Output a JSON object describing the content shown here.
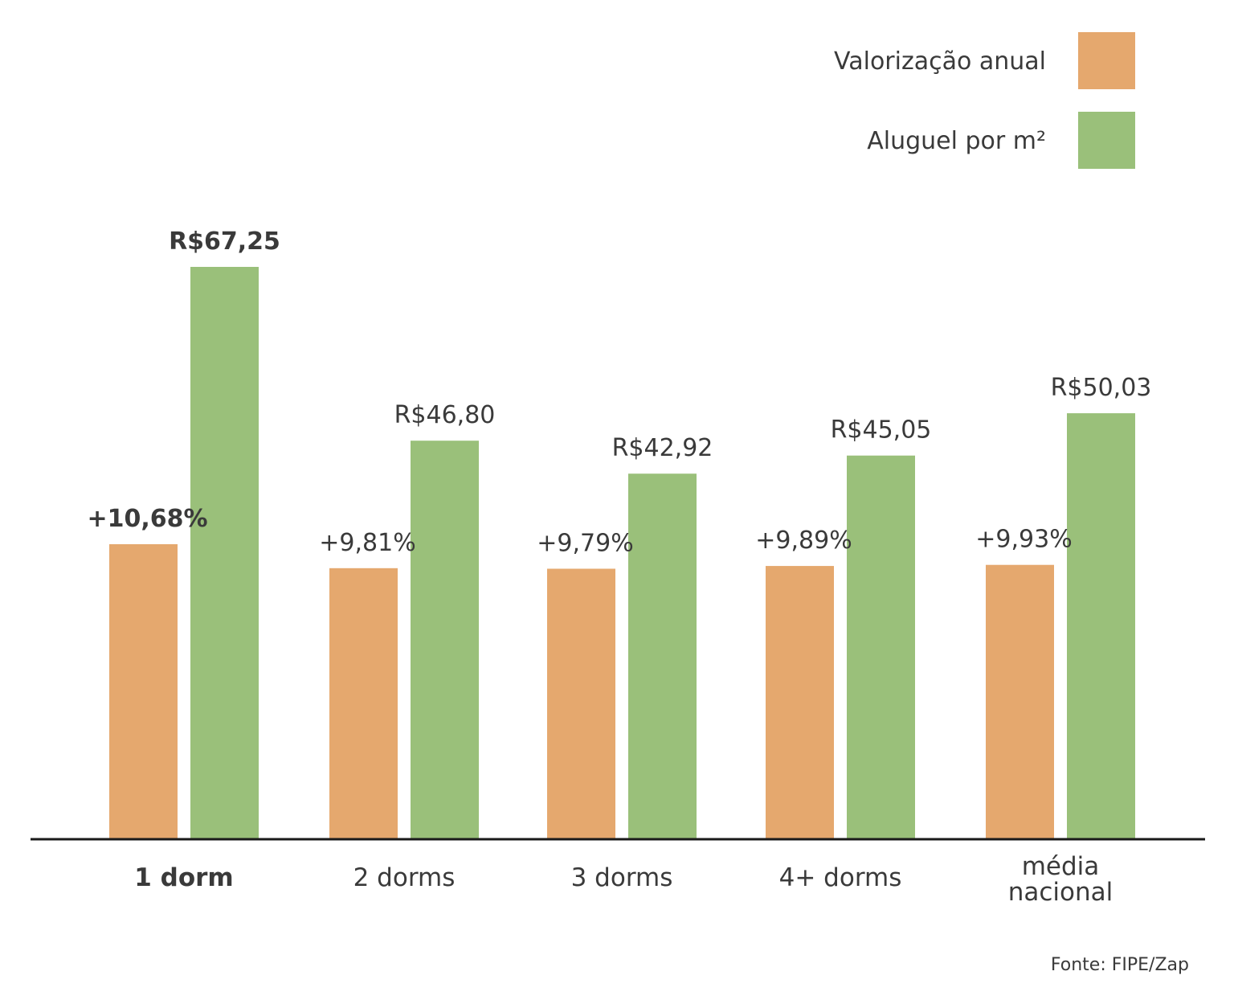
{
  "chart_data": {
    "type": "bar",
    "categories": [
      "1 dorm",
      "2 dorms",
      "3 dorms",
      "4+ dorms",
      "média nacional"
    ],
    "highlight_category": "1 dorm",
    "series": [
      {
        "name": "Valorização anual",
        "color": "#e5a86e",
        "values": [
          10.68,
          9.81,
          9.79,
          9.89,
          9.93
        ],
        "labels": [
          "+10,68%",
          "+9,81%",
          "+9,79%",
          "+9,89%",
          "+9,93%"
        ]
      },
      {
        "name": "Aluguel por m²",
        "color": "#9ac07a",
        "values": [
          67.25,
          46.8,
          42.92,
          45.05,
          50.03
        ],
        "labels": [
          "R$67,25",
          "R$46,80",
          "R$42,92",
          "R$45,05",
          "R$50,03"
        ]
      }
    ],
    "legend_position": "top-right",
    "grid": false,
    "axis_color": "#1a1a1a"
  },
  "source": "Fonte: FIPE/Zap"
}
